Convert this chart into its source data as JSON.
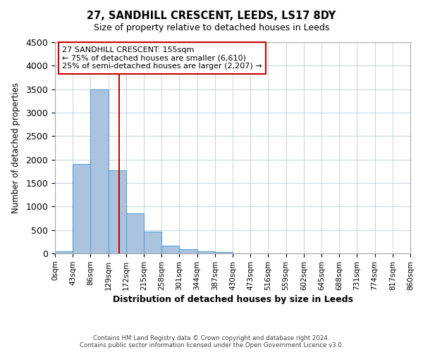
{
  "title_line1": "27, SANDHILL CRESCENT, LEEDS, LS17 8DY",
  "title_line2": "Size of property relative to detached houses in Leeds",
  "xlabel": "Distribution of detached houses by size in Leeds",
  "ylabel": "Number of detached properties",
  "bin_labels": [
    "0sqm",
    "43sqm",
    "86sqm",
    "129sqm",
    "172sqm",
    "215sqm",
    "258sqm",
    "301sqm",
    "344sqm",
    "387sqm",
    "430sqm",
    "473sqm",
    "516sqm",
    "559sqm",
    "602sqm",
    "645sqm",
    "688sqm",
    "731sqm",
    "774sqm",
    "817sqm",
    "860sqm"
  ],
  "bin_edges": [
    0,
    43,
    86,
    129,
    172,
    215,
    258,
    301,
    344,
    387,
    430,
    473,
    516,
    559,
    602,
    645,
    688,
    731,
    774,
    817,
    860
  ],
  "bar_values": [
    50,
    1900,
    3500,
    1775,
    850,
    460,
    170,
    90,
    50,
    30,
    0,
    0,
    0,
    0,
    0,
    0,
    0,
    0,
    0,
    0
  ],
  "bar_color": "#aac4e0",
  "bar_edge_color": "#5a9fd4",
  "ylim": [
    0,
    4500
  ],
  "yticks": [
    0,
    500,
    1000,
    1500,
    2000,
    2500,
    3000,
    3500,
    4000,
    4500
  ],
  "property_size": 155,
  "vline_color": "#cc0000",
  "annotation_title": "27 SANDHILL CRESCENT: 155sqm",
  "annotation_line2": "← 75% of detached houses are smaller (6,610)",
  "annotation_line3": "25% of semi-detached houses are larger (2,207) →",
  "annotation_box_color": "#ffffff",
  "annotation_box_edge": "#cc0000",
  "footer_line1": "Contains HM Land Registry data © Crown copyright and database right 2024.",
  "footer_line2": "Contains public sector information licensed under the Open Government Licence v3.0.",
  "background_color": "#ffffff",
  "grid_color": "#c8d8e8"
}
